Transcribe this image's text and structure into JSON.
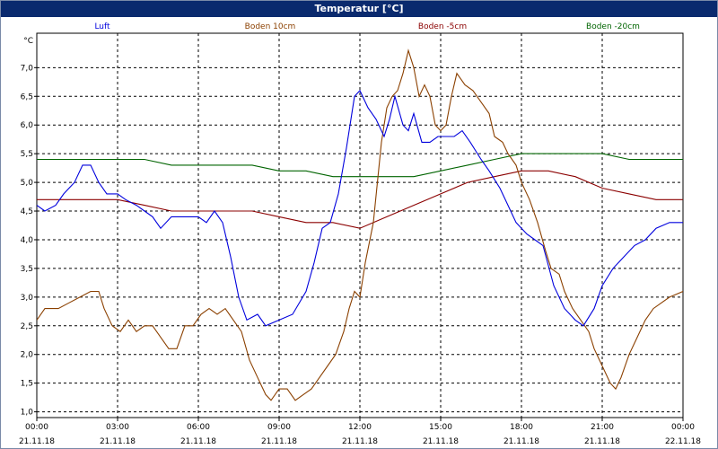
{
  "window": {
    "title": "Temperatur [°C]"
  },
  "chart_data": {
    "type": "line",
    "ylabel": "°C",
    "xlabel": "",
    "ylim": [
      0.9,
      7.6
    ],
    "xlim": [
      0,
      24
    ],
    "yticks": [
      "1,0",
      "1,5",
      "2,0",
      "2,5",
      "3,0",
      "3,5",
      "4,0",
      "4,5",
      "5,0",
      "5,5",
      "6,0",
      "6,5",
      "7,0"
    ],
    "ytick_values": [
      1.0,
      1.5,
      2.0,
      2.5,
      3.0,
      3.5,
      4.0,
      4.5,
      5.0,
      5.5,
      6.0,
      6.5,
      7.0
    ],
    "xticks": [
      {
        "time": "00:00",
        "date": "21.11.18"
      },
      {
        "time": "03:00",
        "date": "21.11.18"
      },
      {
        "time": "06:00",
        "date": "21.11.18"
      },
      {
        "time": "09:00",
        "date": "21.11.18"
      },
      {
        "time": "12:00",
        "date": "21.11.18"
      },
      {
        "time": "15:00",
        "date": "21.11.18"
      },
      {
        "time": "18:00",
        "date": "21.11.18"
      },
      {
        "time": "21:00",
        "date": "21.11.18"
      },
      {
        "time": "00:00",
        "date": "22.11.18"
      }
    ],
    "xtick_hours": [
      0,
      3,
      6,
      9,
      12,
      15,
      18,
      21,
      24
    ],
    "grid": true,
    "legend_placement": "top",
    "series": [
      {
        "name": "Luft",
        "color": "#0000dd",
        "points": [
          [
            0,
            4.6
          ],
          [
            0.3,
            4.5
          ],
          [
            0.7,
            4.6
          ],
          [
            1.0,
            4.8
          ],
          [
            1.4,
            5.0
          ],
          [
            1.7,
            5.3
          ],
          [
            2.0,
            5.3
          ],
          [
            2.3,
            5.0
          ],
          [
            2.6,
            4.8
          ],
          [
            3.0,
            4.8
          ],
          [
            3.3,
            4.7
          ],
          [
            3.7,
            4.6
          ],
          [
            4.0,
            4.5
          ],
          [
            4.3,
            4.4
          ],
          [
            4.6,
            4.2
          ],
          [
            5.0,
            4.4
          ],
          [
            5.5,
            4.4
          ],
          [
            6.0,
            4.4
          ],
          [
            6.3,
            4.3
          ],
          [
            6.6,
            4.5
          ],
          [
            6.9,
            4.3
          ],
          [
            7.2,
            3.7
          ],
          [
            7.5,
            3.0
          ],
          [
            7.8,
            2.6
          ],
          [
            8.2,
            2.7
          ],
          [
            8.5,
            2.5
          ],
          [
            9.0,
            2.6
          ],
          [
            9.5,
            2.7
          ],
          [
            10.0,
            3.1
          ],
          [
            10.3,
            3.6
          ],
          [
            10.6,
            4.2
          ],
          [
            10.9,
            4.3
          ],
          [
            11.2,
            4.8
          ],
          [
            11.5,
            5.6
          ],
          [
            11.8,
            6.5
          ],
          [
            12.0,
            6.6
          ],
          [
            12.3,
            6.3
          ],
          [
            12.6,
            6.1
          ],
          [
            12.9,
            5.8
          ],
          [
            13.1,
            6.1
          ],
          [
            13.3,
            6.5
          ],
          [
            13.6,
            6.0
          ],
          [
            13.8,
            5.9
          ],
          [
            14.0,
            6.2
          ],
          [
            14.3,
            5.7
          ],
          [
            14.6,
            5.7
          ],
          [
            14.9,
            5.8
          ],
          [
            15.2,
            5.8
          ],
          [
            15.5,
            5.8
          ],
          [
            15.8,
            5.9
          ],
          [
            16.1,
            5.7
          ],
          [
            16.5,
            5.4
          ],
          [
            16.8,
            5.2
          ],
          [
            17.2,
            4.9
          ],
          [
            17.5,
            4.6
          ],
          [
            17.8,
            4.3
          ],
          [
            18.2,
            4.1
          ],
          [
            18.5,
            4.0
          ],
          [
            18.8,
            3.9
          ],
          [
            19.2,
            3.2
          ],
          [
            19.6,
            2.8
          ],
          [
            20.0,
            2.6
          ],
          [
            20.3,
            2.5
          ],
          [
            20.7,
            2.8
          ],
          [
            21.0,
            3.2
          ],
          [
            21.4,
            3.5
          ],
          [
            21.8,
            3.7
          ],
          [
            22.2,
            3.9
          ],
          [
            22.6,
            4.0
          ],
          [
            23.0,
            4.2
          ],
          [
            23.5,
            4.3
          ],
          [
            24.0,
            4.3
          ]
        ]
      },
      {
        "name": "Boden 10cm",
        "color": "#8b4000",
        "points": [
          [
            0,
            2.6
          ],
          [
            0.3,
            2.8
          ],
          [
            0.8,
            2.8
          ],
          [
            1.2,
            2.9
          ],
          [
            1.6,
            3.0
          ],
          [
            2.0,
            3.1
          ],
          [
            2.3,
            3.1
          ],
          [
            2.5,
            2.8
          ],
          [
            2.8,
            2.5
          ],
          [
            3.1,
            2.4
          ],
          [
            3.4,
            2.6
          ],
          [
            3.7,
            2.4
          ],
          [
            4.0,
            2.5
          ],
          [
            4.3,
            2.5
          ],
          [
            4.6,
            2.3
          ],
          [
            4.9,
            2.1
          ],
          [
            5.2,
            2.1
          ],
          [
            5.5,
            2.5
          ],
          [
            5.8,
            2.5
          ],
          [
            6.1,
            2.7
          ],
          [
            6.4,
            2.8
          ],
          [
            6.7,
            2.7
          ],
          [
            7.0,
            2.8
          ],
          [
            7.3,
            2.6
          ],
          [
            7.6,
            2.4
          ],
          [
            7.9,
            1.9
          ],
          [
            8.2,
            1.6
          ],
          [
            8.5,
            1.3
          ],
          [
            8.7,
            1.2
          ],
          [
            9.0,
            1.4
          ],
          [
            9.3,
            1.4
          ],
          [
            9.6,
            1.2
          ],
          [
            9.9,
            1.3
          ],
          [
            10.2,
            1.4
          ],
          [
            10.5,
            1.6
          ],
          [
            10.8,
            1.8
          ],
          [
            11.1,
            2.0
          ],
          [
            11.4,
            2.4
          ],
          [
            11.6,
            2.8
          ],
          [
            11.8,
            3.1
          ],
          [
            12.0,
            3.0
          ],
          [
            12.2,
            3.6
          ],
          [
            12.5,
            4.3
          ],
          [
            12.8,
            5.7
          ],
          [
            13.0,
            6.3
          ],
          [
            13.2,
            6.5
          ],
          [
            13.4,
            6.6
          ],
          [
            13.6,
            6.9
          ],
          [
            13.8,
            7.3
          ],
          [
            14.0,
            7.0
          ],
          [
            14.2,
            6.5
          ],
          [
            14.4,
            6.7
          ],
          [
            14.6,
            6.5
          ],
          [
            14.8,
            6.0
          ],
          [
            15.0,
            5.9
          ],
          [
            15.2,
            6.0
          ],
          [
            15.4,
            6.5
          ],
          [
            15.6,
            6.9
          ],
          [
            15.9,
            6.7
          ],
          [
            16.2,
            6.6
          ],
          [
            16.5,
            6.4
          ],
          [
            16.8,
            6.2
          ],
          [
            17.0,
            5.8
          ],
          [
            17.3,
            5.7
          ],
          [
            17.5,
            5.5
          ],
          [
            17.8,
            5.3
          ],
          [
            18.0,
            5.0
          ],
          [
            18.3,
            4.7
          ],
          [
            18.6,
            4.3
          ],
          [
            18.9,
            3.8
          ],
          [
            19.1,
            3.5
          ],
          [
            19.4,
            3.4
          ],
          [
            19.6,
            3.1
          ],
          [
            19.9,
            2.8
          ],
          [
            20.2,
            2.6
          ],
          [
            20.5,
            2.4
          ],
          [
            20.7,
            2.1
          ],
          [
            21.0,
            1.8
          ],
          [
            21.3,
            1.5
          ],
          [
            21.5,
            1.4
          ],
          [
            21.7,
            1.6
          ],
          [
            22.0,
            2.0
          ],
          [
            22.3,
            2.3
          ],
          [
            22.6,
            2.6
          ],
          [
            22.9,
            2.8
          ],
          [
            23.2,
            2.9
          ],
          [
            23.5,
            3.0
          ],
          [
            24.0,
            3.1
          ],
          [
            24.5,
            3.2
          ],
          [
            25.0,
            3.3
          ]
        ]
      },
      {
        "name": "Boden -5cm",
        "color": "#8b0000",
        "points": [
          [
            0,
            4.7
          ],
          [
            1,
            4.7
          ],
          [
            2,
            4.7
          ],
          [
            3,
            4.7
          ],
          [
            4,
            4.6
          ],
          [
            5,
            4.5
          ],
          [
            6,
            4.5
          ],
          [
            7,
            4.5
          ],
          [
            8,
            4.5
          ],
          [
            9,
            4.4
          ],
          [
            10,
            4.3
          ],
          [
            11,
            4.3
          ],
          [
            12,
            4.2
          ],
          [
            13,
            4.4
          ],
          [
            14,
            4.6
          ],
          [
            15,
            4.8
          ],
          [
            16,
            5.0
          ],
          [
            17,
            5.1
          ],
          [
            18,
            5.2
          ],
          [
            19,
            5.2
          ],
          [
            20,
            5.1
          ],
          [
            21,
            4.9
          ],
          [
            22,
            4.8
          ],
          [
            23,
            4.7
          ],
          [
            24,
            4.7
          ]
        ]
      },
      {
        "name": "Boden -20cm",
        "color": "#006400",
        "points": [
          [
            0,
            5.4
          ],
          [
            1,
            5.4
          ],
          [
            2,
            5.4
          ],
          [
            3,
            5.4
          ],
          [
            4,
            5.4
          ],
          [
            5,
            5.3
          ],
          [
            6,
            5.3
          ],
          [
            7,
            5.3
          ],
          [
            8,
            5.3
          ],
          [
            9,
            5.2
          ],
          [
            10,
            5.2
          ],
          [
            11,
            5.1
          ],
          [
            12,
            5.1
          ],
          [
            13,
            5.1
          ],
          [
            14,
            5.1
          ],
          [
            15,
            5.2
          ],
          [
            16,
            5.3
          ],
          [
            17,
            5.4
          ],
          [
            18,
            5.5
          ],
          [
            19,
            5.5
          ],
          [
            20,
            5.5
          ],
          [
            21,
            5.5
          ],
          [
            22,
            5.4
          ],
          [
            23,
            5.4
          ],
          [
            24,
            5.4
          ]
        ]
      }
    ]
  }
}
